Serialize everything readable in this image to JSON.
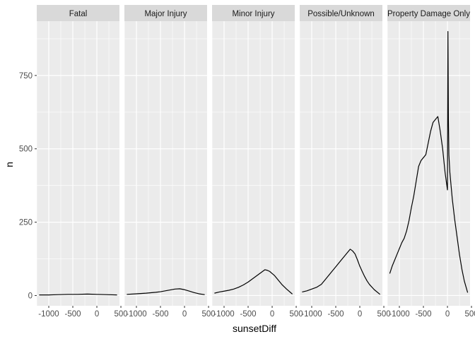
{
  "chart_data": {
    "type": "line",
    "xlabel": "sunsetDiff",
    "ylabel": "n",
    "xlim": [
      -1250,
      470
    ],
    "ylim": [
      -35,
      935
    ],
    "x_ticks": [
      -1000,
      -500,
      0,
      500
    ],
    "x_tick_labels": [
      "-1000",
      "-500",
      "0",
      "500"
    ],
    "y_ticks": [
      0,
      250,
      500,
      750
    ],
    "y_tick_labels": [
      "0",
      "250",
      "500",
      "750"
    ],
    "grid": true,
    "legend": "none",
    "colors": {
      "panel_bg": "#ebebeb",
      "strip_bg": "#d9d9d9",
      "grid": "#ffffff",
      "line": "#000000"
    },
    "facets": [
      {
        "label": "Fatal",
        "series": {
          "x": [
            -1200,
            -1000,
            -800,
            -600,
            -400,
            -200,
            0,
            200,
            420
          ],
          "y": [
            2,
            2,
            3,
            4,
            4,
            5,
            4,
            3,
            2
          ]
        }
      },
      {
        "label": "Major Injury",
        "series": {
          "x": [
            -1200,
            -1000,
            -800,
            -600,
            -500,
            -400,
            -300,
            -200,
            -100,
            0,
            100,
            200,
            300,
            420
          ],
          "y": [
            4,
            6,
            8,
            11,
            13,
            16,
            19,
            22,
            23,
            20,
            15,
            10,
            6,
            3
          ]
        }
      },
      {
        "label": "Minor Injury",
        "series": {
          "x": [
            -1200,
            -1100,
            -1000,
            -900,
            -800,
            -700,
            -600,
            -500,
            -400,
            -300,
            -200,
            -150,
            -100,
            -50,
            0,
            50,
            100,
            150,
            200,
            300,
            420
          ],
          "y": [
            8,
            12,
            15,
            18,
            22,
            28,
            36,
            46,
            58,
            70,
            82,
            88,
            86,
            82,
            75,
            68,
            58,
            48,
            38,
            22,
            5
          ]
        }
      },
      {
        "label": "Possible/Unknown",
        "series": {
          "x": [
            -1200,
            -1100,
            -1000,
            -900,
            -800,
            -700,
            -600,
            -500,
            -400,
            -300,
            -250,
            -200,
            -150,
            -100,
            -50,
            0,
            50,
            100,
            150,
            200,
            300,
            420
          ],
          "y": [
            12,
            16,
            22,
            28,
            38,
            58,
            78,
            98,
            118,
            138,
            148,
            158,
            152,
            142,
            122,
            100,
            82,
            65,
            50,
            38,
            20,
            4
          ]
        }
      },
      {
        "label": "Property Damage Only",
        "series": {
          "x": [
            -1200,
            -1150,
            -1100,
            -1050,
            -1000,
            -950,
            -900,
            -850,
            -800,
            -750,
            -700,
            -650,
            -600,
            -550,
            -500,
            -450,
            -400,
            -350,
            -300,
            -250,
            -200,
            -150,
            -100,
            -50,
            0,
            10,
            20,
            30,
            50,
            100,
            150,
            200,
            250,
            300,
            350,
            420
          ],
          "y": [
            75,
            100,
            120,
            140,
            160,
            180,
            195,
            220,
            255,
            300,
            340,
            390,
            440,
            460,
            470,
            480,
            520,
            560,
            590,
            600,
            610,
            560,
            500,
            420,
            360,
            900,
            600,
            480,
            420,
            330,
            260,
            200,
            140,
            90,
            50,
            10
          ]
        }
      }
    ]
  }
}
